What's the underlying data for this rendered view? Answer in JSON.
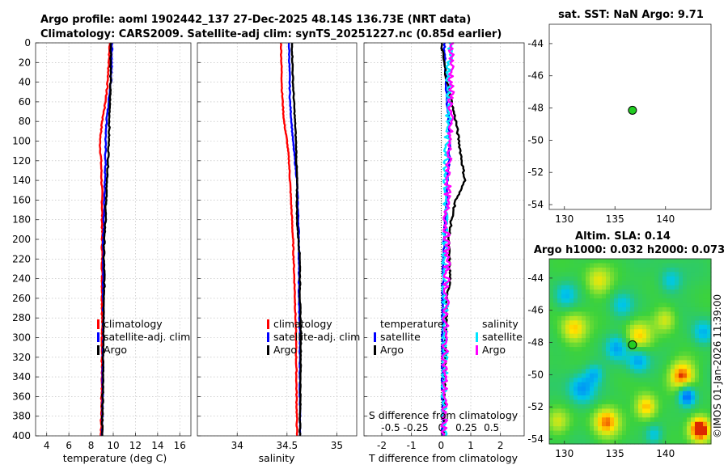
{
  "title": {
    "line1": "Argo profile: aoml 1902442_137 27-Dec-2025 48.14S 136.73E (NRT data)",
    "line2": "Climatology: CARS2009. Satellite-adj clim: synTS_20251227.nc (0.85d earlier)"
  },
  "colors": {
    "climatology": "#ff0000",
    "satellite": "#0000ff",
    "argo": "#000000",
    "salinity_satellite": "#00e5ff",
    "salinity_argo": "#ff00ff",
    "marker": "#22cc22"
  },
  "chart_data": [
    {
      "id": "temperature",
      "type": "line",
      "xlabel": "temperature (deg C)",
      "ylabel": "",
      "xlim": [
        3,
        17
      ],
      "ylim": [
        400,
        0
      ],
      "xticks": [
        4,
        6,
        8,
        10,
        12,
        14,
        16
      ],
      "xtick_labels": [
        "4",
        "6",
        "8",
        "10",
        "12",
        "14",
        "16"
      ],
      "yticks": [
        0,
        20,
        40,
        60,
        80,
        100,
        120,
        140,
        160,
        180,
        200,
        220,
        240,
        260,
        280,
        300,
        320,
        340,
        360,
        380,
        400
      ],
      "ytick_labels": [
        "0",
        "20",
        "40",
        "60",
        "80",
        "100",
        "120",
        "140",
        "160",
        "180",
        "200",
        "220",
        "240",
        "260",
        "280",
        "300",
        "320",
        "340",
        "360",
        "380",
        "400"
      ],
      "grid": true,
      "legend": {
        "position": "right-middle",
        "entries": [
          "climatology",
          "satellite-adj. clim",
          "Argo"
        ]
      },
      "series": [
        {
          "name": "climatology",
          "color": "#ff0000",
          "depth": [
            0,
            40,
            60,
            80,
            100,
            120,
            160,
            200,
            240,
            300,
            400
          ],
          "values": [
            9.7,
            9.5,
            9.3,
            9.0,
            8.8,
            8.9,
            9.0,
            9.0,
            9.0,
            9.0,
            8.9
          ]
        },
        {
          "name": "satellite-adj. clim",
          "color": "#0000ff",
          "depth": [
            0,
            40,
            60,
            80,
            100,
            120,
            160,
            200,
            240,
            300,
            400
          ],
          "values": [
            9.9,
            9.8,
            9.6,
            9.4,
            9.3,
            9.3,
            9.2,
            9.1,
            9.1,
            9.1,
            9.0
          ]
        },
        {
          "name": "Argo",
          "color": "#000000",
          "depth": [
            0,
            40,
            60,
            80,
            100,
            120,
            140,
            160,
            180,
            200,
            220,
            240,
            280,
            320,
            360,
            400
          ],
          "values": [
            9.8,
            9.75,
            9.7,
            9.65,
            9.6,
            9.55,
            9.45,
            9.35,
            9.3,
            9.2,
            9.15,
            9.2,
            9.15,
            9.1,
            9.05,
            9.0
          ]
        }
      ]
    },
    {
      "id": "salinity",
      "type": "line",
      "xlabel": "salinity",
      "ylabel": "",
      "xlim": [
        33.6,
        35.2
      ],
      "ylim": [
        400,
        0
      ],
      "xticks": [
        34,
        34.5,
        35
      ],
      "xtick_labels": [
        "34",
        "34.5",
        "35"
      ],
      "grid": true,
      "legend": {
        "position": "right-middle",
        "entries": [
          "climatology",
          "satellite-adj. clim",
          "Argo"
        ]
      },
      "series": [
        {
          "name": "climatology",
          "color": "#ff0000",
          "depth": [
            0,
            50,
            80,
            100,
            120,
            160,
            200,
            260,
            300,
            400
          ],
          "values": [
            34.44,
            34.45,
            34.47,
            34.5,
            34.52,
            34.54,
            34.56,
            34.58,
            34.59,
            34.6
          ]
        },
        {
          "name": "satellite-adj. clim",
          "color": "#0000ff",
          "depth": [
            0,
            60,
            100,
            140,
            200,
            260,
            300,
            400
          ],
          "values": [
            34.52,
            34.53,
            34.56,
            34.6,
            34.62,
            34.62,
            34.63,
            34.63
          ]
        },
        {
          "name": "Argo",
          "color": "#000000",
          "depth": [
            0,
            40,
            80,
            100,
            140,
            180,
            220,
            260,
            300,
            400
          ],
          "values": [
            34.55,
            34.56,
            34.58,
            34.59,
            34.6,
            34.6,
            34.63,
            34.63,
            34.64,
            34.63
          ]
        }
      ]
    },
    {
      "id": "difference",
      "type": "line",
      "xlabel": "T difference from climatology",
      "xlabel_top": "S difference from climatology",
      "xlim": [
        -2.6,
        2.8
      ],
      "ylim": [
        400,
        0
      ],
      "xticks": [
        -2,
        -1,
        0,
        1,
        2
      ],
      "xtick_labels": [
        "-2",
        "-1",
        "0",
        "1",
        "2"
      ],
      "sticks": [
        -0.5,
        -0.25,
        0,
        0.25,
        0.5
      ],
      "stick_labels": [
        "-0.5",
        "-0.25",
        "0",
        "0.25",
        "0.5"
      ],
      "grid": true,
      "legend": {
        "position": "right-middle",
        "groups": [
          {
            "title": "temperature",
            "entries": [
              "satellite",
              "Argo"
            ]
          },
          {
            "title": "salinity",
            "entries": [
              "satellite",
              "Argo"
            ]
          }
        ]
      },
      "series": [
        {
          "name": "T satellite",
          "color": "#0000ff",
          "depth": [
            0,
            60,
            100,
            200,
            260,
            400
          ],
          "values": [
            0.1,
            0.2,
            0.3,
            0.1,
            0.05,
            0.05
          ]
        },
        {
          "name": "T Argo",
          "color": "#000000",
          "depth": [
            0,
            40,
            80,
            100,
            120,
            140,
            160,
            180,
            200,
            240,
            260,
            300,
            400
          ],
          "values": [
            0.0,
            0.2,
            0.5,
            0.6,
            0.7,
            0.8,
            0.5,
            0.35,
            0.25,
            0.3,
            0.2,
            0.15,
            0.1
          ]
        },
        {
          "name": "S satellite",
          "color": "#00e5ff",
          "depth": [
            0,
            60,
            100,
            140,
            200,
            260,
            400
          ],
          "values": [
            0.08,
            0.08,
            0.06,
            0.05,
            0.04,
            0.04,
            0.03
          ]
        },
        {
          "name": "S Argo",
          "color": "#ff00ff",
          "depth": [
            0,
            40,
            80,
            100,
            140,
            180,
            220,
            260,
            300,
            400
          ],
          "values": [
            0.11,
            0.1,
            0.09,
            0.08,
            0.07,
            0.05,
            0.06,
            0.05,
            0.04,
            0.03
          ]
        }
      ]
    },
    {
      "id": "sst",
      "type": "scatter",
      "title": "sat. SST: NaN Argo: 9.71",
      "xlim": [
        128.5,
        144.5
      ],
      "ylim": [
        -54.3,
        -42.8
      ],
      "xticks": [
        130,
        135,
        140
      ],
      "xtick_labels": [
        "130",
        "135",
        "140"
      ],
      "yticks": [
        -44,
        -46,
        -48,
        -50,
        -52,
        -54
      ],
      "ytick_labels": [
        "-44",
        "-46",
        "-48",
        "-50",
        "-52",
        "-54"
      ],
      "points": [
        {
          "lon": 136.73,
          "lat": -48.14,
          "color": "#22cc22"
        }
      ]
    },
    {
      "id": "sla",
      "type": "heatmap",
      "title_line1": "Altim. SLA: 0.14",
      "title_line2": "Argo h1000: 0.032 h2000: 0.073",
      "xlim": [
        128.5,
        144.5
      ],
      "ylim": [
        -54.3,
        -42.8
      ],
      "xticks": [
        130,
        135,
        140
      ],
      "xtick_labels": [
        "130",
        "135",
        "140"
      ],
      "yticks": [
        -44,
        -46,
        -48,
        -50,
        -52,
        -54
      ],
      "ytick_labels": [
        "-44",
        "-46",
        "-48",
        "-50",
        "-52",
        "-54"
      ],
      "points": [
        {
          "lon": 136.73,
          "lat": -48.14,
          "color": "#22cc22"
        }
      ]
    }
  ],
  "legend_labels": {
    "climatology": "climatology",
    "satellite_adj": "satellite-adj. clim",
    "argo": "Argo",
    "temperature": "temperature",
    "salinity": "salinity",
    "satellite": "satellite"
  },
  "watermark": "©IMOS 01-Jan-2026 11:39:00"
}
